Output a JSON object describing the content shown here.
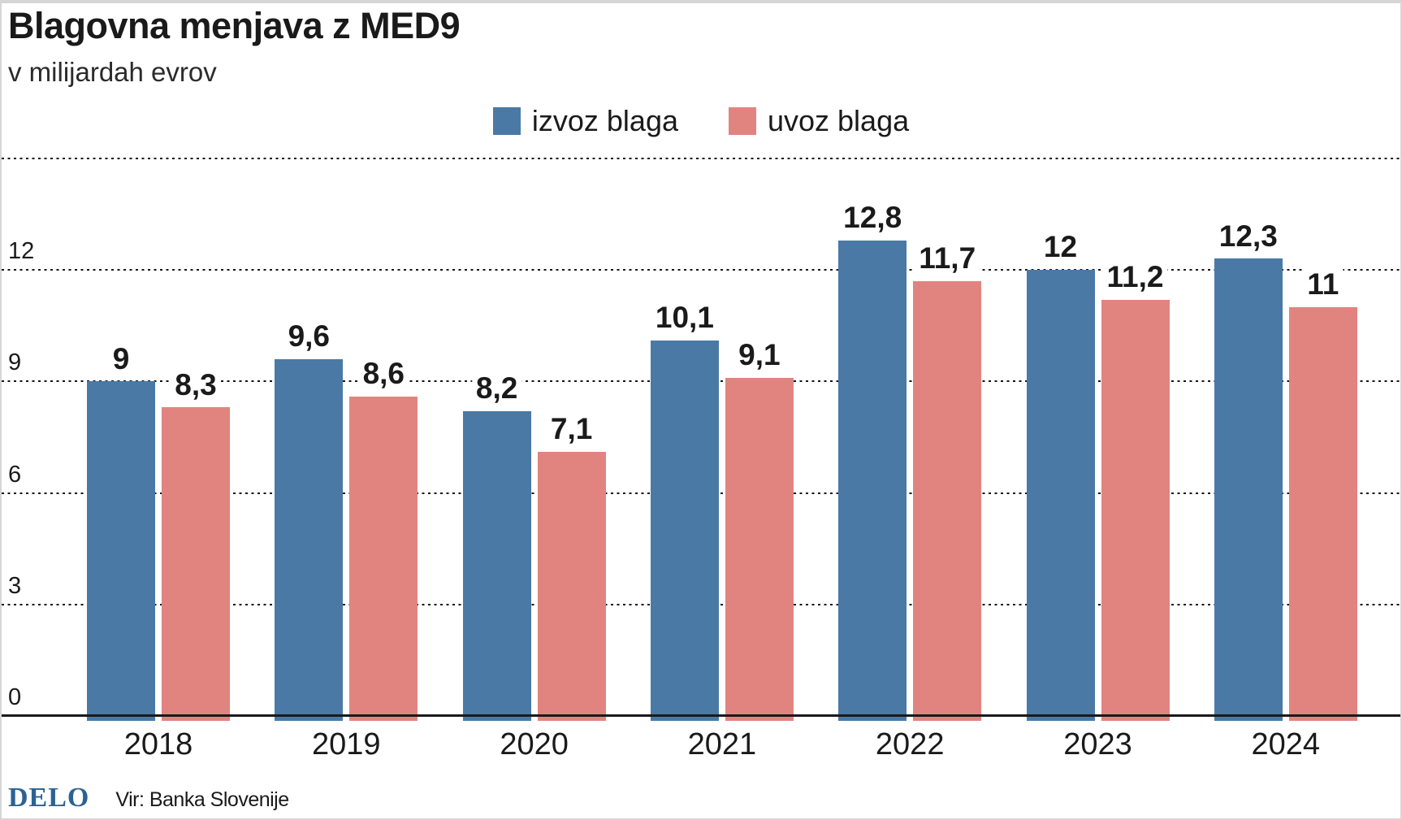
{
  "chart_data": {
    "type": "bar",
    "title": "Blagovna menjava z MED9",
    "subtitle": "v milijardah evrov",
    "categories": [
      "2018",
      "2019",
      "2020",
      "2021",
      "2022",
      "2023",
      "2024"
    ],
    "series": [
      {
        "name": "izvoz blaga",
        "color": "#4a79a6",
        "values": [
          9,
          9.6,
          8.2,
          10.1,
          12.8,
          12,
          12.3
        ],
        "labels": [
          "9",
          "9,6",
          "8,2",
          "10,1",
          "12,8",
          "12",
          "12,3"
        ]
      },
      {
        "name": "uvoz blaga",
        "color": "#e18480",
        "values": [
          8.3,
          8.6,
          7.1,
          9.1,
          11.7,
          11.2,
          11
        ],
        "labels": [
          "8,3",
          "8,6",
          "7,1",
          "9,1",
          "11,7",
          "11,2",
          "11"
        ]
      }
    ],
    "ylim": [
      0,
      15
    ],
    "yticks": [
      0,
      3,
      6,
      9,
      12
    ],
    "gridlines": [
      3,
      6,
      9,
      12,
      15
    ],
    "grid_style": "dotted horizontal lines, solid black zero baseline",
    "legend_position": "top-center",
    "decimal_separator": ","
  },
  "footer": {
    "logo": "DELO",
    "source": "Vir: Banka Slovenije"
  },
  "colors": {
    "izvoz": "#4a79a6",
    "uvoz": "#e18480",
    "logo_blue": "#2c6293",
    "text": "#1a1a1a",
    "border": "#d6d6d6"
  }
}
